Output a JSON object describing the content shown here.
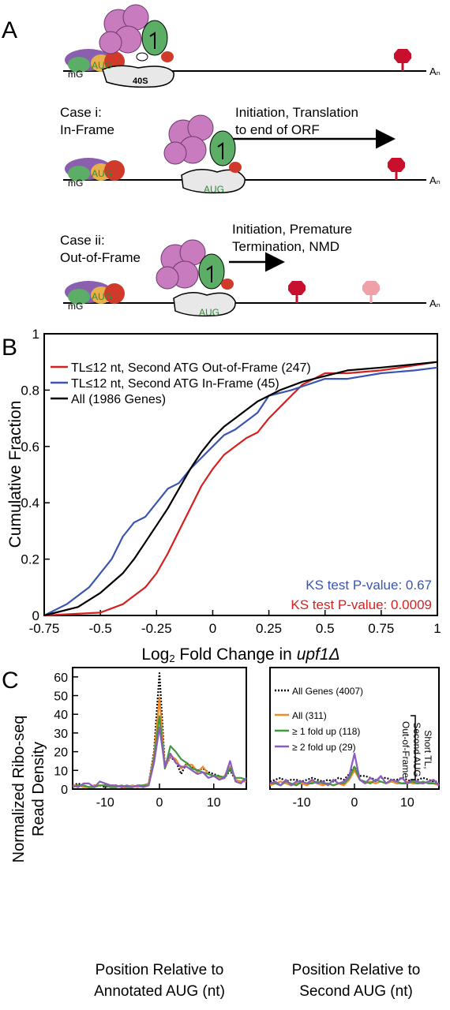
{
  "panels": {
    "a": {
      "letter": "A",
      "cap_label": "mG",
      "cap_label_inframe": "mG",
      "subunit_label": "40S",
      "aug": "AUG",
      "polyA": "Aₙ",
      "case1_line1": "Case i:",
      "case1_line2": "In-Frame",
      "case1_arrow_line1": "Initiation, Translation",
      "case1_arrow_line2": "to end of ORF",
      "case2_line1": "Case ii:",
      "case2_line2": "Out-of-Frame",
      "case2_arrow_line1": "Initiation, Premature",
      "case2_arrow_line2": "Termination, NMD",
      "colors": {
        "purple": "#8b5fb0",
        "pink": "#c97bbf",
        "green": "#5cae66",
        "orange": "#e8b04a",
        "red": "#d03a2a",
        "stop": "#c8102e",
        "stop_faded": "#f0a0a8",
        "subunit": "#e8e8e8"
      }
    },
    "b": {
      "letter": "B",
      "ylabel": "Cumulative Fraction",
      "xlabel_prefix": "Log",
      "xlabel_sub": "2",
      "xlabel_middle": " Fold Change in ",
      "xlabel_gene": "upf1Δ",
      "ks_blue": "KS test P-value: 0.67",
      "ks_red": "KS test P-value: 0.0009"
    },
    "c": {
      "letter": "C",
      "ylabel_line1": "Normalized Ribo-seq",
      "ylabel_line2": "Read Density",
      "left_xlabel_line1": "Position Relative to",
      "left_xlabel_line2": "Annotated AUG (nt)",
      "right_xlabel_line1": "Position Relative to",
      "right_xlabel_line2": "Second AUG (nt)",
      "side_label_line1": "Short TL,",
      "side_label_line2": "Second AUG",
      "side_label_line3": "Out-of-Frame"
    }
  },
  "chart_data": [
    {
      "type": "line",
      "panel": "B",
      "title": "",
      "xlabel": "Log2 Fold Change in upf1Δ",
      "ylabel": "Cumulative Fraction",
      "xlim": [
        -0.75,
        1
      ],
      "ylim": [
        0,
        1
      ],
      "xticks": [
        -0.75,
        -0.5,
        -0.25,
        0,
        0.25,
        0.5,
        0.75,
        1
      ],
      "xtick_labels": [
        "-0.75",
        "-0.5",
        "-0.25",
        "0",
        "0.25",
        "0.5",
        "0.75",
        "1"
      ],
      "yticks": [
        0,
        0.2,
        0.4,
        0.6,
        0.8,
        1
      ],
      "ytick_labels": [
        "0",
        "0.2",
        "0.4",
        "0.6",
        "0.8",
        "1"
      ],
      "legend_position": "top-left",
      "series": [
        {
          "name": "TL≤12 nt, Second ATG Out-of-Frame (247)",
          "color": "#d62020",
          "x": [
            -0.75,
            -0.5,
            -0.4,
            -0.3,
            -0.25,
            -0.2,
            -0.15,
            -0.1,
            -0.05,
            0,
            0.05,
            0.1,
            0.15,
            0.2,
            0.25,
            0.3,
            0.35,
            0.4,
            0.5,
            0.6,
            0.75,
            1
          ],
          "y": [
            0,
            0.01,
            0.04,
            0.1,
            0.15,
            0.22,
            0.3,
            0.38,
            0.46,
            0.52,
            0.57,
            0.6,
            0.63,
            0.65,
            0.7,
            0.74,
            0.78,
            0.82,
            0.86,
            0.86,
            0.87,
            0.9
          ]
        },
        {
          "name": "TL≤12 nt, Second ATG In-Frame (45)",
          "color": "#3a55b0",
          "x": [
            -0.75,
            -0.65,
            -0.55,
            -0.45,
            -0.4,
            -0.35,
            -0.3,
            -0.25,
            -0.2,
            -0.15,
            -0.1,
            -0.05,
            0,
            0.05,
            0.1,
            0.15,
            0.2,
            0.25,
            0.35,
            0.5,
            0.6,
            0.75,
            0.9,
            1
          ],
          "y": [
            0,
            0.04,
            0.1,
            0.2,
            0.28,
            0.33,
            0.35,
            0.4,
            0.45,
            0.47,
            0.52,
            0.56,
            0.6,
            0.64,
            0.66,
            0.69,
            0.72,
            0.78,
            0.8,
            0.84,
            0.84,
            0.86,
            0.87,
            0.88
          ]
        },
        {
          "name": "All (1986 Genes)",
          "color": "#000000",
          "x": [
            -0.75,
            -0.6,
            -0.5,
            -0.4,
            -0.35,
            -0.3,
            -0.25,
            -0.2,
            -0.15,
            -0.1,
            -0.05,
            0,
            0.05,
            0.1,
            0.15,
            0.2,
            0.25,
            0.3,
            0.4,
            0.5,
            0.6,
            0.75,
            1
          ],
          "y": [
            0,
            0.03,
            0.08,
            0.15,
            0.2,
            0.26,
            0.32,
            0.38,
            0.45,
            0.52,
            0.58,
            0.63,
            0.67,
            0.7,
            0.73,
            0.76,
            0.78,
            0.8,
            0.83,
            0.85,
            0.87,
            0.88,
            0.9
          ]
        }
      ]
    },
    {
      "type": "line",
      "panel": "C-left",
      "title": "",
      "xlabel": "Position Relative to Annotated AUG (nt)",
      "ylabel": "Normalized Ribo-seq Read Density",
      "xlim": [
        -16,
        16
      ],
      "ylim": [
        0,
        65
      ],
      "xticks": [
        -10,
        0,
        10
      ],
      "xtick_labels": [
        "-10",
        "0",
        "10"
      ],
      "yticks": [
        0,
        10,
        20,
        30,
        40,
        50,
        60
      ],
      "ytick_labels": [
        "0",
        "10",
        "20",
        "30",
        "40",
        "50",
        "60"
      ],
      "series": [
        {
          "name": "All Genes (4007)",
          "color": "#000000",
          "dash": true,
          "x": [
            -16,
            -15,
            -14,
            -13,
            -12,
            -11,
            -10,
            -9,
            -8,
            -7,
            -6,
            -5,
            -4,
            -3,
            -2,
            -1,
            0,
            1,
            2,
            3,
            4,
            5,
            6,
            7,
            8,
            9,
            10,
            11,
            12,
            13,
            14,
            15,
            16
          ],
          "y": [
            2,
            3,
            2,
            1,
            2,
            2,
            1,
            2,
            2,
            1,
            1,
            2,
            1,
            2,
            3,
            20,
            62,
            12,
            17,
            15,
            8,
            14,
            12,
            10,
            11,
            9,
            8,
            7,
            6,
            10,
            5,
            4,
            5
          ]
        },
        {
          "name": "All (311)",
          "color": "#f08a24",
          "x": [
            -16,
            -15,
            -14,
            -13,
            -12,
            -11,
            -10,
            -9,
            -8,
            -7,
            -6,
            -5,
            -4,
            -3,
            -2,
            -1,
            0,
            1,
            2,
            3,
            4,
            5,
            6,
            7,
            8,
            9,
            10,
            11,
            12,
            13,
            14,
            15,
            16
          ],
          "y": [
            2,
            2,
            1,
            1,
            2,
            2,
            2,
            1,
            2,
            1,
            1,
            2,
            1,
            2,
            3,
            18,
            49,
            11,
            18,
            16,
            11,
            13,
            13,
            9,
            12,
            8,
            7,
            6,
            7,
            12,
            5,
            4,
            4
          ]
        },
        {
          "name": "≥ 1 fold up (118)",
          "color": "#3f9a3f",
          "x": [
            -16,
            -15,
            -14,
            -13,
            -12,
            -11,
            -10,
            -9,
            -8,
            -7,
            -6,
            -5,
            -4,
            -3,
            -2,
            -1,
            0,
            1,
            2,
            3,
            4,
            5,
            6,
            7,
            8,
            9,
            10,
            11,
            12,
            13,
            14,
            15,
            16
          ],
          "y": [
            1,
            2,
            2,
            1,
            1,
            2,
            2,
            1,
            1,
            2,
            1,
            1,
            2,
            2,
            2,
            16,
            39,
            11,
            23,
            20,
            16,
            14,
            11,
            10,
            9,
            8,
            7,
            7,
            6,
            11,
            6,
            6,
            5
          ]
        },
        {
          "name": "≥ 2 fold up (29)",
          "color": "#8a5cc0",
          "x": [
            -16,
            -15,
            -14,
            -13,
            -12,
            -11,
            -10,
            -9,
            -8,
            -7,
            -6,
            -5,
            -4,
            -3,
            -2,
            -1,
            0,
            1,
            2,
            3,
            4,
            5,
            6,
            7,
            8,
            9,
            10,
            11,
            12,
            13,
            14,
            15,
            16
          ],
          "y": [
            2,
            1,
            3,
            3,
            1,
            4,
            3,
            2,
            2,
            1,
            2,
            1,
            2,
            1,
            2,
            14,
            33,
            12,
            19,
            14,
            12,
            12,
            10,
            8,
            9,
            6,
            7,
            5,
            6,
            15,
            4,
            3,
            6
          ]
        }
      ]
    },
    {
      "type": "line",
      "panel": "C-right",
      "title": "",
      "xlabel": "Position Relative to Second AUG (nt)",
      "xlim": [
        -16,
        16
      ],
      "ylim": [
        0,
        65
      ],
      "xticks": [
        -10,
        0,
        10
      ],
      "xtick_labels": [
        "-10",
        "0",
        "10"
      ],
      "legend_position": "top-right",
      "series": [
        {
          "name": "All Genes (4007)",
          "color": "#000000",
          "dash": true,
          "x": [
            -16,
            -15,
            -14,
            -13,
            -12,
            -11,
            -10,
            -9,
            -8,
            -7,
            -6,
            -5,
            -4,
            -3,
            -2,
            -1,
            0,
            1,
            2,
            3,
            4,
            5,
            6,
            7,
            8,
            9,
            10,
            11,
            12,
            13,
            14,
            15,
            16
          ],
          "y": [
            4,
            5,
            6,
            4,
            5,
            5,
            4,
            5,
            6,
            5,
            4,
            5,
            4,
            6,
            5,
            8,
            12,
            7,
            7,
            6,
            5,
            6,
            6,
            5,
            5,
            6,
            5,
            4,
            5,
            6,
            5,
            4,
            4
          ]
        },
        {
          "name": "All (311)",
          "color": "#f08a24",
          "x": [
            -16,
            -15,
            -14,
            -13,
            -12,
            -11,
            -10,
            -9,
            -8,
            -7,
            -6,
            -5,
            -4,
            -3,
            -2,
            -1,
            0,
            1,
            2,
            3,
            4,
            5,
            6,
            7,
            8,
            9,
            10,
            11,
            12,
            13,
            14,
            15,
            16
          ],
          "y": [
            2,
            3,
            4,
            3,
            2,
            3,
            3,
            2,
            4,
            3,
            2,
            3,
            2,
            3,
            2,
            5,
            10,
            5,
            3,
            4,
            3,
            4,
            3,
            4,
            3,
            3,
            4,
            3,
            3,
            3,
            4,
            3,
            2
          ]
        },
        {
          "name": "≥ 1 fold up (118)",
          "color": "#3f9a3f",
          "x": [
            -16,
            -15,
            -14,
            -13,
            -12,
            -11,
            -10,
            -9,
            -8,
            -7,
            -6,
            -5,
            -4,
            -3,
            -2,
            -1,
            0,
            1,
            2,
            3,
            4,
            5,
            6,
            7,
            8,
            9,
            10,
            11,
            12,
            13,
            14,
            15,
            16
          ],
          "y": [
            3,
            3,
            2,
            4,
            3,
            2,
            4,
            3,
            3,
            4,
            3,
            3,
            2,
            3,
            3,
            6,
            12,
            5,
            4,
            3,
            5,
            4,
            3,
            5,
            4,
            3,
            3,
            4,
            3,
            4,
            3,
            3,
            3
          ]
        },
        {
          "name": "≥ 2 fold up (29)",
          "color": "#8a5cc0",
          "x": [
            -16,
            -15,
            -14,
            -13,
            -12,
            -11,
            -10,
            -9,
            -8,
            -7,
            -6,
            -5,
            -4,
            -3,
            -2,
            -1,
            0,
            1,
            2,
            3,
            4,
            5,
            6,
            7,
            8,
            9,
            10,
            11,
            12,
            13,
            14,
            15,
            16
          ],
          "y": [
            3,
            4,
            2,
            5,
            2,
            4,
            4,
            3,
            5,
            3,
            4,
            2,
            5,
            3,
            4,
            7,
            19,
            5,
            3,
            6,
            4,
            7,
            3,
            5,
            4,
            6,
            3,
            5,
            4,
            3,
            4,
            5,
            2
          ]
        }
      ]
    }
  ]
}
